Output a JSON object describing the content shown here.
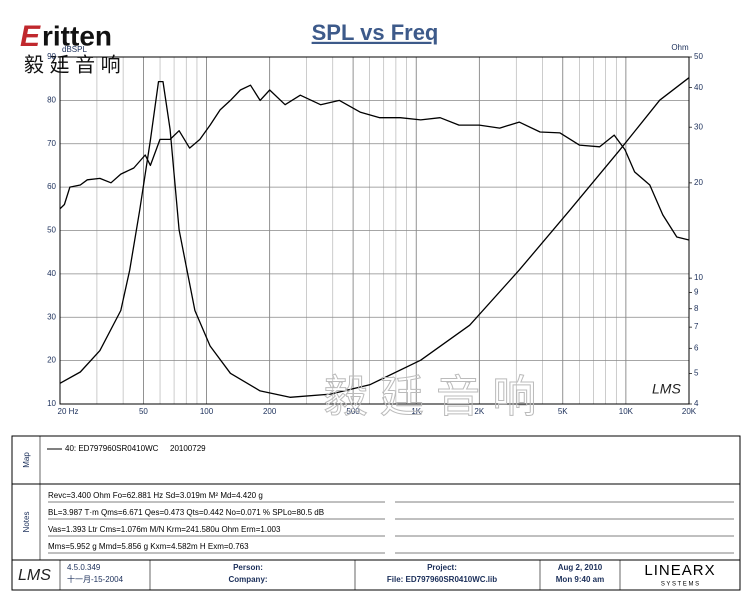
{
  "header": {
    "logo_mark": "E",
    "logo_text": "ritten",
    "brand_cn": "毅 廷 音 响"
  },
  "chart_data": {
    "type": "line",
    "title": "SPL vs Freq",
    "y_label": "dBSPL",
    "y2_label": "Ohm",
    "watermark": "毅 廷 音 响",
    "logo": "LMS",
    "xscale": "log",
    "xlim": [
      20,
      20000
    ],
    "xticks": [
      {
        "value": 20,
        "label": "20 Hz"
      },
      50,
      100,
      200,
      500,
      {
        "value": 1000,
        "label": "1K"
      },
      {
        "value": 2000,
        "label": "2K"
      },
      {
        "value": 5000,
        "label": "5K"
      },
      {
        "value": 10000,
        "label": "10K"
      },
      {
        "value": 20000,
        "label": "20K"
      }
    ],
    "xgrid": [
      30,
      40,
      60,
      70,
      80,
      90,
      300,
      400,
      600,
      700,
      800,
      900,
      3000,
      4000,
      6000,
      7000,
      8000,
      9000
    ],
    "ylim": [
      10,
      90
    ],
    "yticks": [
      10,
      20,
      30,
      40,
      50,
      60,
      70,
      80,
      90
    ],
    "y2scale": "log",
    "y2lim": [
      4,
      50
    ],
    "y2ticks": [
      4,
      5,
      6,
      7,
      8,
      9,
      10,
      20,
      30,
      40,
      50
    ],
    "grid": true,
    "series": [
      {
        "name": "SPL",
        "color": "#000000",
        "x": [
          20,
          21,
          22.3,
          25,
          27,
          31,
          35,
          39,
          45,
          51,
          54,
          60,
          67,
          74,
          83,
          93,
          104,
          116,
          130,
          145,
          162,
          180,
          200,
          237,
          280,
          350,
          430,
          540,
          670,
          840,
          1050,
          1300,
          1600,
          2000,
          2500,
          3100,
          3900,
          4850,
          6000,
          7500,
          8800,
          9900,
          11000,
          13000,
          15000,
          17500,
          20000
        ],
        "values": [
          55,
          56,
          60,
          60.5,
          61.7,
          62,
          61,
          63,
          64.4,
          67.4,
          65,
          71,
          71,
          73,
          69,
          71,
          74.3,
          77.8,
          80,
          82.4,
          83.5,
          80,
          82.4,
          79,
          81.2,
          79,
          80,
          77.3,
          76,
          76,
          75.5,
          76,
          74.3,
          74.3,
          73.6,
          75,
          72.7,
          72.5,
          69.7,
          69.3,
          72,
          68.6,
          63.5,
          60.5,
          53.6,
          48.5,
          47.8
        ]
      },
      {
        "name": "Impedance",
        "color": "#000000",
        "axis": "y2",
        "x": [
          20,
          25,
          31,
          39,
          43,
          48,
          54,
          59,
          62,
          67,
          74,
          88,
          104,
          130,
          180,
          250,
          390,
          600,
          1050,
          1800,
          3100,
          5400,
          9300,
          14500,
          20000
        ],
        "values": [
          4.65,
          5.05,
          5.9,
          7.9,
          10.6,
          16.4,
          27.3,
          41.8,
          41.8,
          29.5,
          14.2,
          7.9,
          6.1,
          5.0,
          4.4,
          4.2,
          4.3,
          4.6,
          5.5,
          7.1,
          10.6,
          16.4,
          25.3,
          36.5,
          43
        ]
      }
    ]
  },
  "map": {
    "label": "Map",
    "curve": "40: ED797960SR0410WC",
    "date": "20100729"
  },
  "notes": {
    "label": "Notes",
    "lines": [
      "Revc=3.400 Ohm  Fo=62.881 Hz  Sd=3.019m M²  Md=4.420 g",
      "BL=3.987 T·m  Qms=6.671  Qes=0.473  Qts=0.442  No=0.071 %  SPLo=80.5 dB",
      "Vas=1.393 Ltr  Cms=1.076m M/N  Krm=241.580u Ohm  Erm=1.003",
      "Mms=5.952 g  Mmd=5.856 g  Kxm=4.582m H  Exm=0.763"
    ]
  },
  "footer": {
    "logo": "LMS",
    "version": "4.5.0.349",
    "version_date": "十一月-15-2004",
    "person": "Person:",
    "company": "Company:",
    "project": "Project:",
    "file": "File: ED797960SR0410WC.lib",
    "date": "Aug  2, 2010",
    "time": "Mon  9:40 am",
    "brand": "LINEARX",
    "brand_sub": "S Y S T E M S"
  }
}
